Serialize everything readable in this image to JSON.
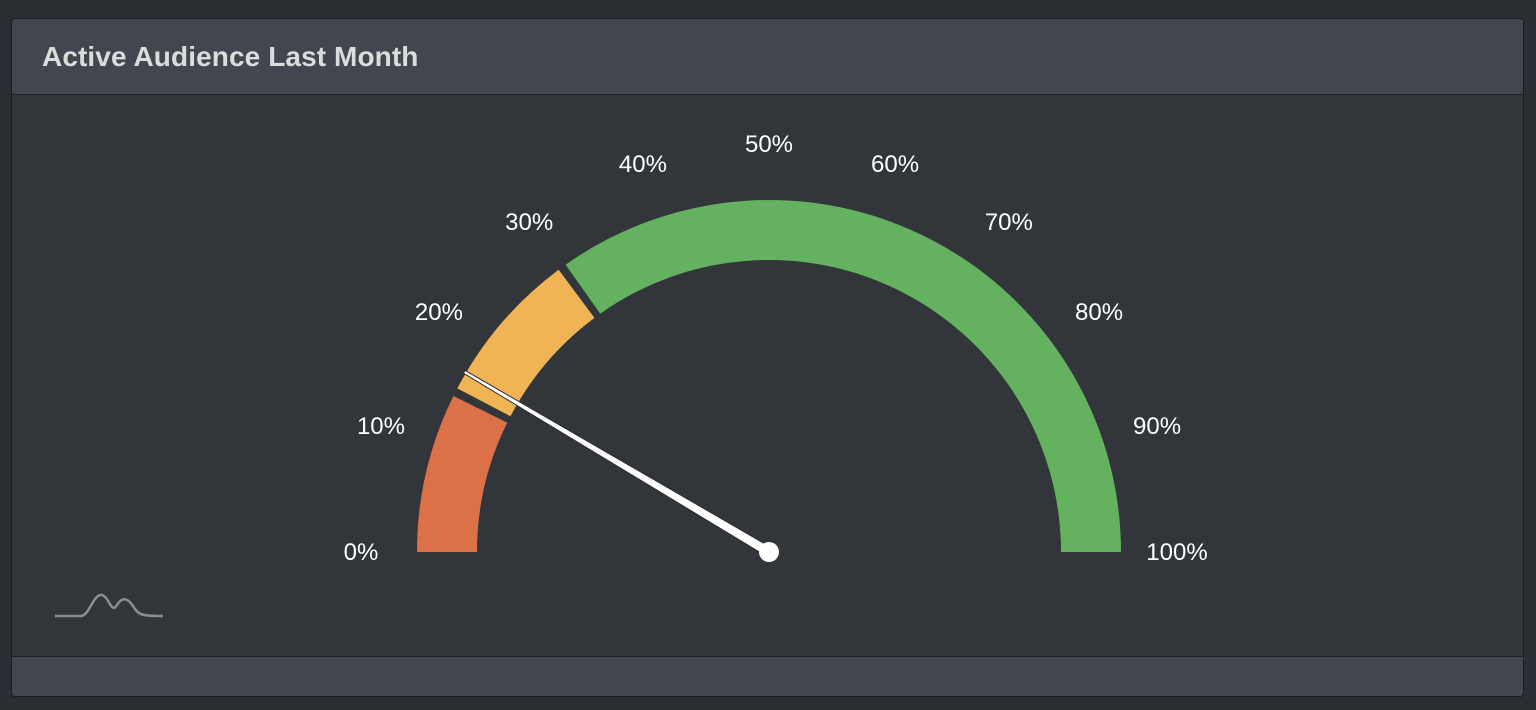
{
  "panel": {
    "title": "Active Audience Last Month"
  },
  "chart_data": {
    "type": "gauge",
    "value": 17,
    "min": 0,
    "max": 100,
    "tick_labels": [
      "0%",
      "10%",
      "20%",
      "30%",
      "40%",
      "50%",
      "60%",
      "70%",
      "80%",
      "90%",
      "100%"
    ],
    "bands": [
      {
        "from": 0,
        "to": 15,
        "color": "#dc7046"
      },
      {
        "from": 15,
        "to": 30,
        "color": "#f0b454"
      },
      {
        "from": 30,
        "to": 100,
        "color": "#64b160"
      }
    ],
    "needle_color": "#ffffff"
  },
  "icons": {
    "logo": "mountain-logo-icon"
  }
}
